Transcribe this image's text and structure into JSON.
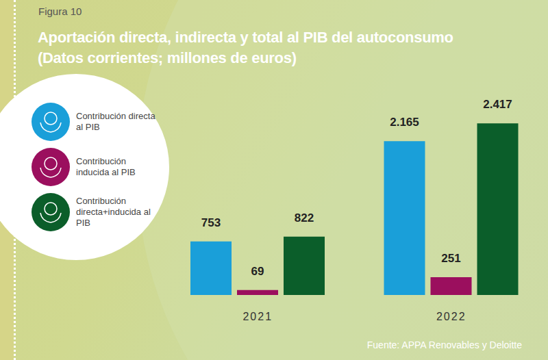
{
  "chart_data": {
    "type": "bar",
    "title": "Aportación directa, indirecta y total al PIB del autoconsumo",
    "subtitle": "(Datos corrientes; millones de euros)",
    "annotations": [
      "Figura 10",
      "Fuente: APPA Renovables y Deloitte"
    ],
    "categories": [
      "2021",
      "2022"
    ],
    "series": [
      {
        "name": "Contribución directa al PIB",
        "color": "#1a9fd9",
        "values": [
          753,
          2165
        ],
        "value_labels": [
          "753",
          "2.165"
        ]
      },
      {
        "name": "Contribución inducida al PIB",
        "color": "#9b0f5e",
        "values": [
          69,
          251
        ]
      },
      {
        "name": "Contribución directa+inducida al PIB",
        "color": "#0b5e2a",
        "values": [
          822,
          2417
        ],
        "value_labels": [
          "822",
          "2.417"
        ]
      }
    ],
    "ylim": [
      0,
      2900
    ],
    "grid": false,
    "legend": "left",
    "data_labels": true,
    "tick_labels": "x"
  }
}
